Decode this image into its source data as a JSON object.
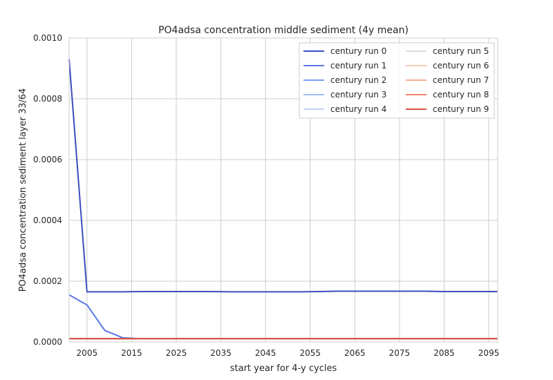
{
  "chart_data": {
    "type": "line",
    "title": "PO4adsa concentration middle sediment (4y mean)",
    "xlabel": "start year for 4-y cycles",
    "ylabel": "PO4adsa concentration sediment layer 33/64",
    "xlim": [
      2001,
      2097
    ],
    "ylim": [
      0.0,
      0.001
    ],
    "xticks": [
      2005,
      2015,
      2025,
      2035,
      2045,
      2055,
      2065,
      2075,
      2085,
      2095
    ],
    "yticks": [
      "0.0000",
      "0.0002",
      "0.0004",
      "0.0006",
      "0.0008",
      "0.0010"
    ],
    "ytick_values": [
      0.0,
      0.0002,
      0.0004,
      0.0006,
      0.0008,
      0.001
    ],
    "grid": true,
    "legend_position": "top-right",
    "series": [
      {
        "name": "century run 0",
        "color": "#3b4cc0",
        "x": [
          2001,
          2005,
          2009,
          2013,
          2017,
          2021,
          2025,
          2029,
          2033,
          2037,
          2041,
          2045,
          2049,
          2053,
          2057,
          2061,
          2065,
          2069,
          2073,
          2077,
          2081,
          2085,
          2089,
          2093,
          2097
        ],
        "y": [
          0.00093,
          0.000165,
          0.000165,
          0.000165,
          0.000166,
          0.000166,
          0.000166,
          0.000166,
          0.000166,
          0.000165,
          0.000165,
          0.000165,
          0.000165,
          0.000165,
          0.000166,
          0.000167,
          0.000167,
          0.000167,
          0.000167,
          0.000167,
          0.000167,
          0.000166,
          0.000166,
          0.000166,
          0.000166
        ]
      },
      {
        "name": "century run 1",
        "color": "#5977e3",
        "x": [
          2001,
          2005,
          2009,
          2013,
          2017,
          2021,
          2097
        ],
        "y": [
          0.000155,
          0.000122,
          3.8e-05,
          1.4e-05,
          1.1e-05,
          1.1e-05,
          1.1e-05
        ]
      },
      {
        "name": "century run 2",
        "color": "#7b9ff9",
        "x": [
          2001,
          2097
        ],
        "y": [
          1.1e-05,
          1.1e-05
        ]
      },
      {
        "name": "century run 3",
        "color": "#9ebeff",
        "x": [
          2001,
          2097
        ],
        "y": [
          1.1e-05,
          1.1e-05
        ]
      },
      {
        "name": "century run 4",
        "color": "#c0d4f5",
        "x": [
          2001,
          2097
        ],
        "y": [
          1.1e-05,
          1.1e-05
        ]
      },
      {
        "name": "century run 5",
        "color": "#dddcdc",
        "x": [
          2001,
          2097
        ],
        "y": [
          1.1e-05,
          1.1e-05
        ]
      },
      {
        "name": "century run 6",
        "color": "#f2cbb7",
        "x": [
          2001,
          2097
        ],
        "y": [
          1.1e-05,
          1.1e-05
        ]
      },
      {
        "name": "century run 7",
        "color": "#f7ac8e",
        "x": [
          2001,
          2097
        ],
        "y": [
          1.1e-05,
          1.1e-05
        ]
      },
      {
        "name": "century run 8",
        "color": "#ee8468",
        "x": [
          2001,
          2097
        ],
        "y": [
          1.1e-05,
          1.1e-05
        ]
      },
      {
        "name": "century run 9",
        "color": "#d65244",
        "x": [
          2001,
          2097
        ],
        "y": [
          1.1e-05,
          1.1e-05
        ]
      }
    ]
  }
}
